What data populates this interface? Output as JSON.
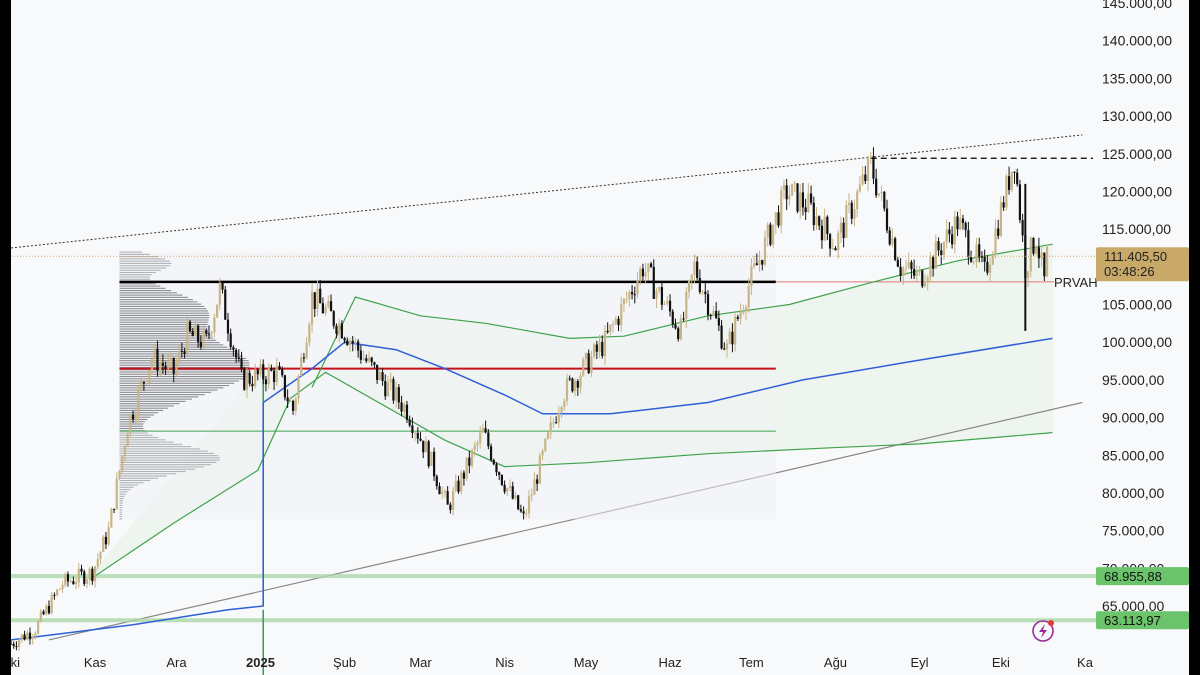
{
  "chart_data": {
    "type": "candlestick",
    "colors": {
      "up": "#c8b487",
      "down": "#111111",
      "ma_blue": "#2f5fd6",
      "band_green": "#3fa34d",
      "poc_red": "#c8101b",
      "level_black": "#000000",
      "price_tag": "#c8a968",
      "support_tag": "#6bc46b"
    },
    "y_axis": {
      "min": 60000,
      "max": 145000,
      "ticks": [
        "145.000,00",
        "140.000,00",
        "135.000,00",
        "130.000,00",
        "125.000,00",
        "120.000,00",
        "115.000,00",
        "110.000,00",
        "105.000,00",
        "100.000,00",
        "95.000,00",
        "90.000,00",
        "85.000,00",
        "80.000,00",
        "75.000,00",
        "70.000,00",
        "65.000,00"
      ],
      "tick_values": [
        145000,
        140000,
        135000,
        130000,
        125000,
        120000,
        115000,
        110000,
        105000,
        100000,
        95000,
        90000,
        85000,
        80000,
        75000,
        70000,
        65000
      ]
    },
    "x_axis": {
      "labels": [
        "Eki",
        "Kas",
        "Ara",
        "2025",
        "Şub",
        "Mar",
        "Nis",
        "May",
        "Haz",
        "Tem",
        "Ağu",
        "Eyl",
        "Eki",
        "Ka"
      ],
      "label_dates": [
        "2024-10-01",
        "2024-11-01",
        "2024-12-01",
        "2025-01-01",
        "2025-02-01",
        "2025-03-01",
        "2025-04-01",
        "2025-05-01",
        "2025-06-01",
        "2025-07-01",
        "2025-08-01",
        "2025-09-01",
        "2025-10-01",
        "2025-11-01"
      ],
      "bold_label": "2025"
    },
    "ohlc_path": [
      [
        "2024-10-01",
        60000
      ],
      [
        "2024-10-10",
        62000
      ],
      [
        "2024-10-20",
        68000
      ],
      [
        "2024-10-31",
        69500
      ],
      [
        "2024-11-06",
        75000
      ],
      [
        "2024-11-13",
        89000
      ],
      [
        "2024-11-22",
        98000
      ],
      [
        "2024-11-30",
        96000
      ],
      [
        "2024-12-05",
        101000
      ],
      [
        "2024-12-12",
        100000
      ],
      [
        "2024-12-17",
        107000
      ],
      [
        "2024-12-25",
        95000
      ],
      [
        "2025-01-07",
        96000
      ],
      [
        "2025-01-13",
        91000
      ],
      [
        "2025-01-20",
        106000
      ],
      [
        "2025-01-31",
        102000
      ],
      [
        "2025-02-10",
        97000
      ],
      [
        "2025-02-24",
        91000
      ],
      [
        "2025-03-04",
        85000
      ],
      [
        "2025-03-11",
        78000
      ],
      [
        "2025-03-24",
        88000
      ],
      [
        "2025-03-31",
        82000
      ],
      [
        "2025-04-08",
        76500
      ],
      [
        "2025-04-22",
        93000
      ],
      [
        "2025-05-08",
        100000
      ],
      [
        "2025-05-22",
        110000
      ],
      [
        "2025-06-05",
        101500
      ],
      [
        "2025-06-10",
        110000
      ],
      [
        "2025-06-22",
        99000
      ],
      [
        "2025-06-30",
        107500
      ],
      [
        "2025-07-14",
        120000
      ],
      [
        "2025-07-22",
        118000
      ],
      [
        "2025-08-01",
        113000
      ],
      [
        "2025-08-14",
        123500
      ],
      [
        "2025-08-25",
        110000
      ],
      [
        "2025-09-01",
        108500
      ],
      [
        "2025-09-15",
        116000
      ],
      [
        "2025-09-25",
        109000
      ],
      [
        "2025-10-06",
        124500
      ],
      [
        "2025-10-10",
        110000
      ],
      [
        "2025-10-14",
        114000
      ],
      [
        "2025-10-17",
        108000
      ],
      [
        "2025-10-18",
        111405.5
      ]
    ],
    "volume_profile": {
      "date_start": "2024-11-10",
      "date_end": "2025-07-10",
      "high": 112000,
      "low": 76500,
      "vah": 108000,
      "poc": 96500,
      "val": 88200
    },
    "moving_average_blue": [
      [
        "2024-10-01",
        60500
      ],
      [
        "2024-11-15",
        62500
      ],
      [
        "2024-12-20",
        64500
      ],
      [
        "2025-01-02",
        65000
      ],
      [
        "2025-01-02",
        92000
      ],
      [
        "2025-01-20",
        96500
      ],
      [
        "2025-02-01",
        100000
      ],
      [
        "2025-02-20",
        99000
      ],
      [
        "2025-03-10",
        96500
      ],
      [
        "2025-04-01",
        93000
      ],
      [
        "2025-04-15",
        90500
      ],
      [
        "2025-05-10",
        90500
      ],
      [
        "2025-06-15",
        92000
      ],
      [
        "2025-07-20",
        95000
      ],
      [
        "2025-08-30",
        97500
      ],
      [
        "2025-10-20",
        100500
      ]
    ],
    "band_upper": [
      [
        "2025-01-20",
        94000
      ],
      [
        "2025-02-05",
        106000
      ],
      [
        "2025-03-01",
        103500
      ],
      [
        "2025-03-25",
        102500
      ],
      [
        "2025-04-25",
        100500
      ],
      [
        "2025-05-15",
        100800
      ],
      [
        "2025-06-15",
        103500
      ],
      [
        "2025-07-15",
        105000
      ],
      [
        "2025-08-15",
        108000
      ],
      [
        "2025-09-15",
        110800
      ],
      [
        "2025-10-20",
        113000
      ]
    ],
    "band_lower": [
      [
        "2024-10-30",
        68500
      ],
      [
        "2024-11-30",
        76000
      ],
      [
        "2024-12-31",
        83000
      ],
      [
        "2025-01-12",
        92500
      ],
      [
        "2025-01-25",
        96000
      ],
      [
        "2025-03-10",
        87000
      ],
      [
        "2025-04-01",
        83500
      ],
      [
        "2025-05-01",
        84000
      ],
      [
        "2025-06-15",
        85200
      ],
      [
        "2025-07-31",
        86000
      ],
      [
        "2025-09-01",
        86500
      ],
      [
        "2025-10-20",
        88000
      ]
    ],
    "channel_upper": [
      [
        "2024-10-01",
        112500
      ],
      [
        "2025-10-31",
        127500
      ]
    ],
    "channel_lower": [
      [
        "2024-10-15",
        60500
      ],
      [
        "2025-10-31",
        92000
      ]
    ],
    "level_black": {
      "value": 108000,
      "from": "2024-11-10",
      "to": "2025-07-10"
    },
    "level_prvah": {
      "value": 108000,
      "from": "2025-07-10",
      "to": "2025-10-18",
      "label": "PRVAH"
    },
    "level_poc": {
      "value": 96500,
      "from": "2024-11-10",
      "to": "2025-07-10"
    },
    "level_val": {
      "value": 88200,
      "from": "2024-11-10",
      "to": "2025-07-10"
    },
    "ath_dashed": {
      "value": 124400,
      "from": "2025-08-14",
      "to": "2025-10-31"
    },
    "support_levels": [
      {
        "value": 68955.88,
        "label": "68.955,88"
      },
      {
        "value": 63113.97,
        "label": "63.113,97"
      }
    ],
    "last_price": {
      "value": 111405.5,
      "label": "111.405,50",
      "countdown": "03:48:26"
    }
  }
}
